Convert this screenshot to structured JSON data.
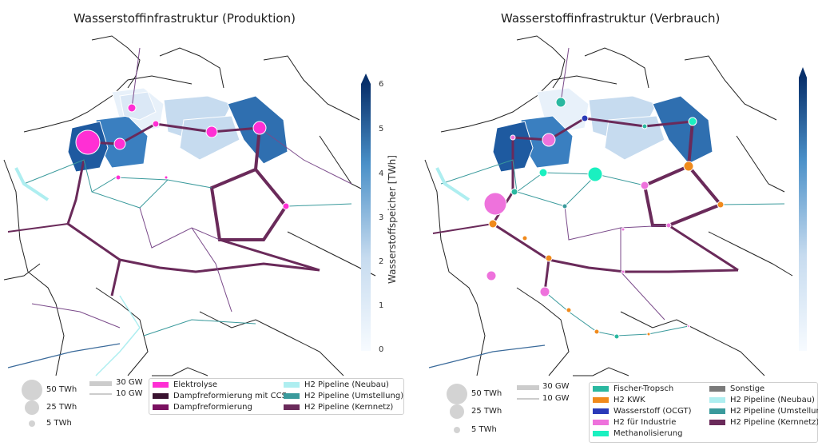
{
  "left": {
    "title": "Wasserstoffinfrastruktur (Produktion)",
    "colorbar": {
      "label": "Wasserstoffspeicher [TWh]",
      "ticks": [
        "6",
        "5",
        "4",
        "3",
        "2",
        "1",
        "0"
      ],
      "range": [
        0,
        6
      ]
    },
    "size_legend": [
      "50 TWh",
      "25 TWh",
      "5 TWh"
    ],
    "width_legend": [
      "30 GW",
      "10 GW"
    ],
    "legend": [
      {
        "label": "Elektrolyse",
        "color": "#ff2fd4"
      },
      {
        "label": "Dampfreformierung mit CCS",
        "color": "#3a1230"
      },
      {
        "label": "Dampfreformierung",
        "color": "#7a1060"
      },
      {
        "label": "H2 Pipeline (Neubau)",
        "color": "#aeeef0"
      },
      {
        "label": "H2 Pipeline (Umstellung)",
        "color": "#3a9a9c"
      },
      {
        "label": "H2 Pipeline (Kernnetz)",
        "color": "#6a2a5a"
      }
    ]
  },
  "right": {
    "title": "Wasserstoffinfrastruktur (Verbrauch)",
    "size_legend": [
      "50 TWh",
      "25 TWh",
      "5 TWh"
    ],
    "width_legend": [
      "30 GW",
      "10 GW"
    ],
    "legend": [
      {
        "label": "Fischer-Tropsch",
        "color": "#2ab8a0"
      },
      {
        "label": "H2 KWK",
        "color": "#f08a1c"
      },
      {
        "label": "Wasserstoff (OCGT)",
        "color": "#2a3ab8"
      },
      {
        "label": "H2 für Industrie",
        "color": "#ee72dc"
      },
      {
        "label": "Methanolisierung",
        "color": "#1af0c0"
      },
      {
        "label": "Sonstige",
        "color": "#7a7a7a"
      },
      {
        "label": "H2 Pipeline (Neubau)",
        "color": "#aeeef0"
      },
      {
        "label": "H2 Pipeline (Umstellun",
        "color": "#3a9a9c"
      },
      {
        "label": "H2 Pipeline (Kernnetz)",
        "color": "#6a2a5a"
      }
    ]
  }
}
